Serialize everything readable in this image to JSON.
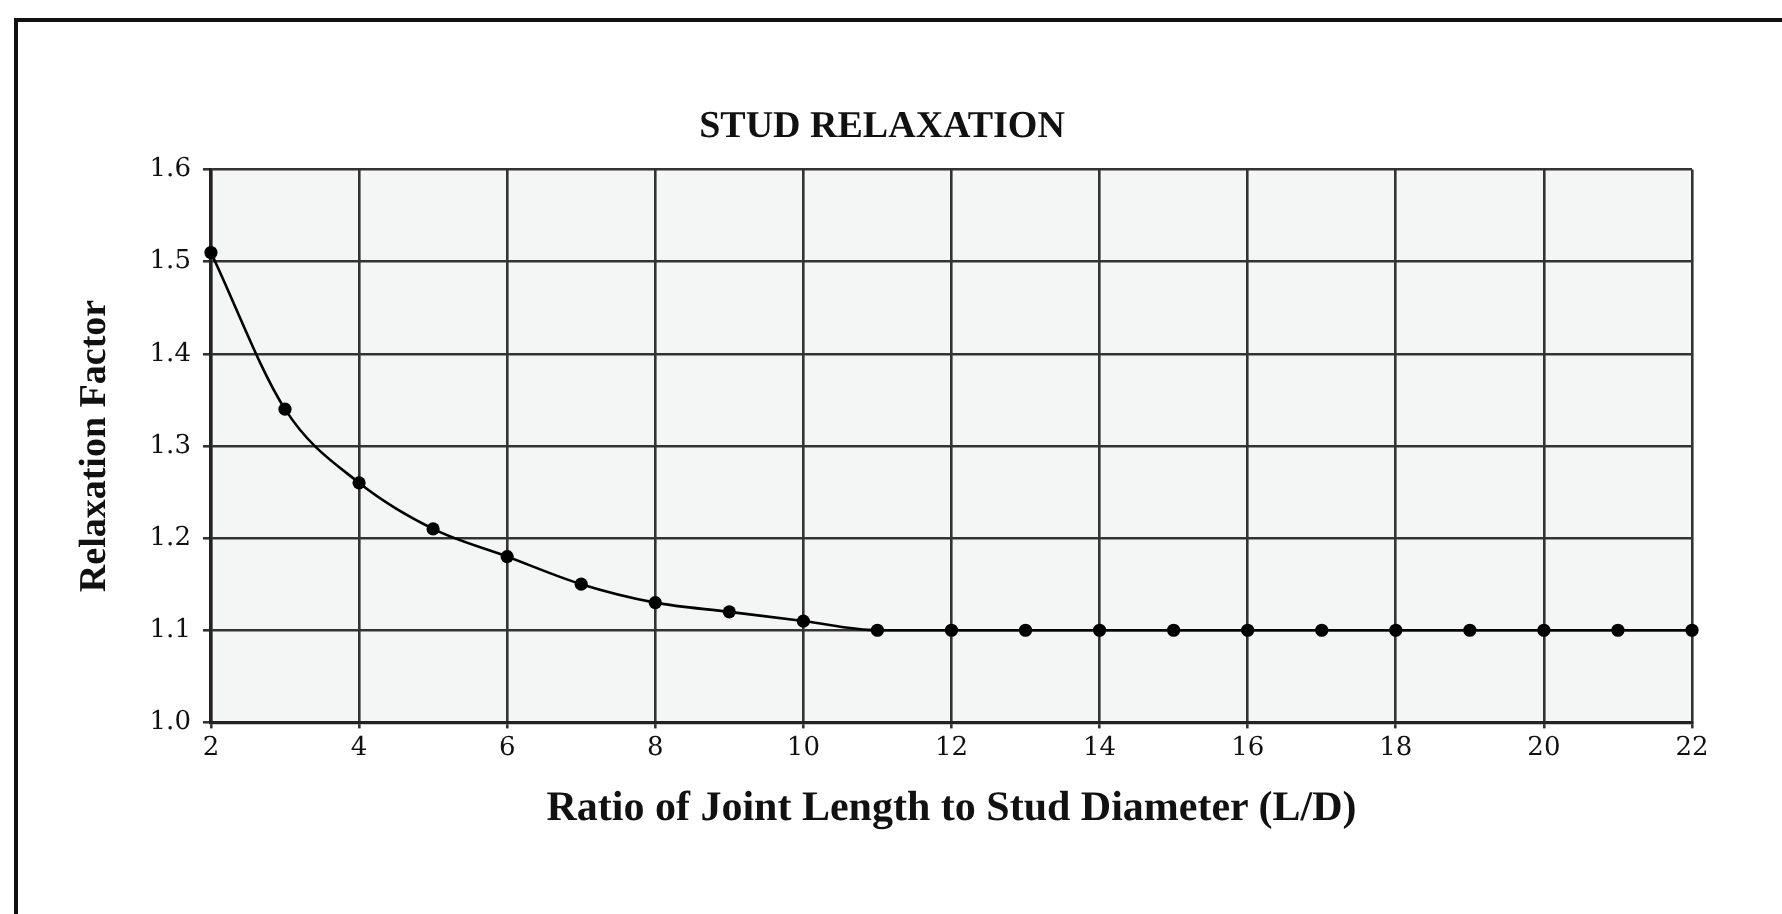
{
  "chart_data": {
    "type": "line",
    "title": "STUD RELAXATION",
    "xlabel": "Ratio of Joint Length to Stud Diameter (L/D)",
    "ylabel": "Relaxation Factor",
    "x": [
      2,
      3,
      4,
      5,
      6,
      7,
      8,
      9,
      10,
      11,
      12,
      13,
      14,
      15,
      16,
      17,
      18,
      19,
      20,
      21,
      22
    ],
    "values": [
      1.51,
      1.34,
      1.26,
      1.21,
      1.18,
      1.15,
      1.13,
      1.12,
      1.11,
      1.1,
      1.1,
      1.1,
      1.1,
      1.1,
      1.1,
      1.1,
      1.1,
      1.1,
      1.1,
      1.1,
      1.1
    ],
    "color": "#000000",
    "xlim": [
      2,
      22
    ],
    "xticks": [
      2,
      4,
      6,
      8,
      10,
      12,
      14,
      16,
      18,
      20,
      22
    ],
    "ylim": [
      1,
      1.6
    ],
    "yticks": [
      {
        "value": 1,
        "label": "1.0"
      },
      1.1,
      1.2,
      1.3,
      1.4,
      1.5,
      1.6
    ],
    "grid": true,
    "marker": "circle",
    "line_style": "solid"
  }
}
